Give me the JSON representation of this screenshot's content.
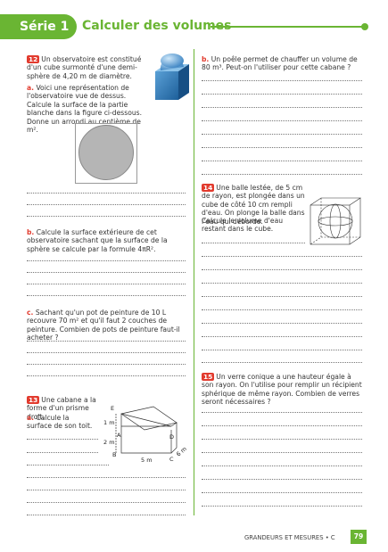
{
  "header": {
    "serie": "Série 1",
    "title": "Calculer des volumes"
  },
  "ex12": {
    "num": "12",
    "intro": "Un observatoire est constitué d'un cube surmonté d'une demi-sphère de 4,20 m de diamètre.",
    "a_label": "a.",
    "a_text": "Voici une représentation de l'observatoire vue de dessus. Calcule la surface de la partie blanche dans la figure ci-dessous. Donne un arrondi au centième de m².",
    "b_label": "b.",
    "b_text": "Calcule la surface extérieure de cet observatoire sachant que la surface de la sphère se calcule par la formule 4πR².",
    "c_label": "c.",
    "c_text": "Sachant qu'un pot de peinture de 10 L recouvre 70 m² et qu'il faut 2 couches de peinture. Combien de pots de peinture faut-il acheter ?"
  },
  "ex13": {
    "num": "13",
    "intro": "Une cabane a la forme d'un prisme droit.",
    "a_label": "a.",
    "a_text": "Calcule la surface de son toit.",
    "fig": {
      "E": "E",
      "A": "A",
      "B": "B",
      "C": "C",
      "D": "D",
      "dim1": "1 m",
      "dim2": "2 m",
      "dim3": "5 m",
      "dim4": "6 m"
    }
  },
  "ex12b": {
    "label": "b.",
    "text": "Un poêle permet de chauffer un volume de 80 m³. Peut-on l'utiliser pour cette cabane ?"
  },
  "ex14": {
    "num": "14",
    "intro": "Une balle lestée, de 5 cm de rayon, est plongée dans un cube de côté 10 cm rempli d'eau. On plonge la balle dans l'eau qui déborde.",
    "question": "Calcule le volume d'eau restant dans le cube."
  },
  "ex15": {
    "num": "15",
    "text": "Un verre conique a une hauteur égale à son rayon. On l'utilise pour remplir un récipient sphérique de même rayon. Combien de verres seront nécessaires ?"
  },
  "footer": {
    "section": "GRANDEURS ET MESURES • C",
    "page": "79"
  }
}
